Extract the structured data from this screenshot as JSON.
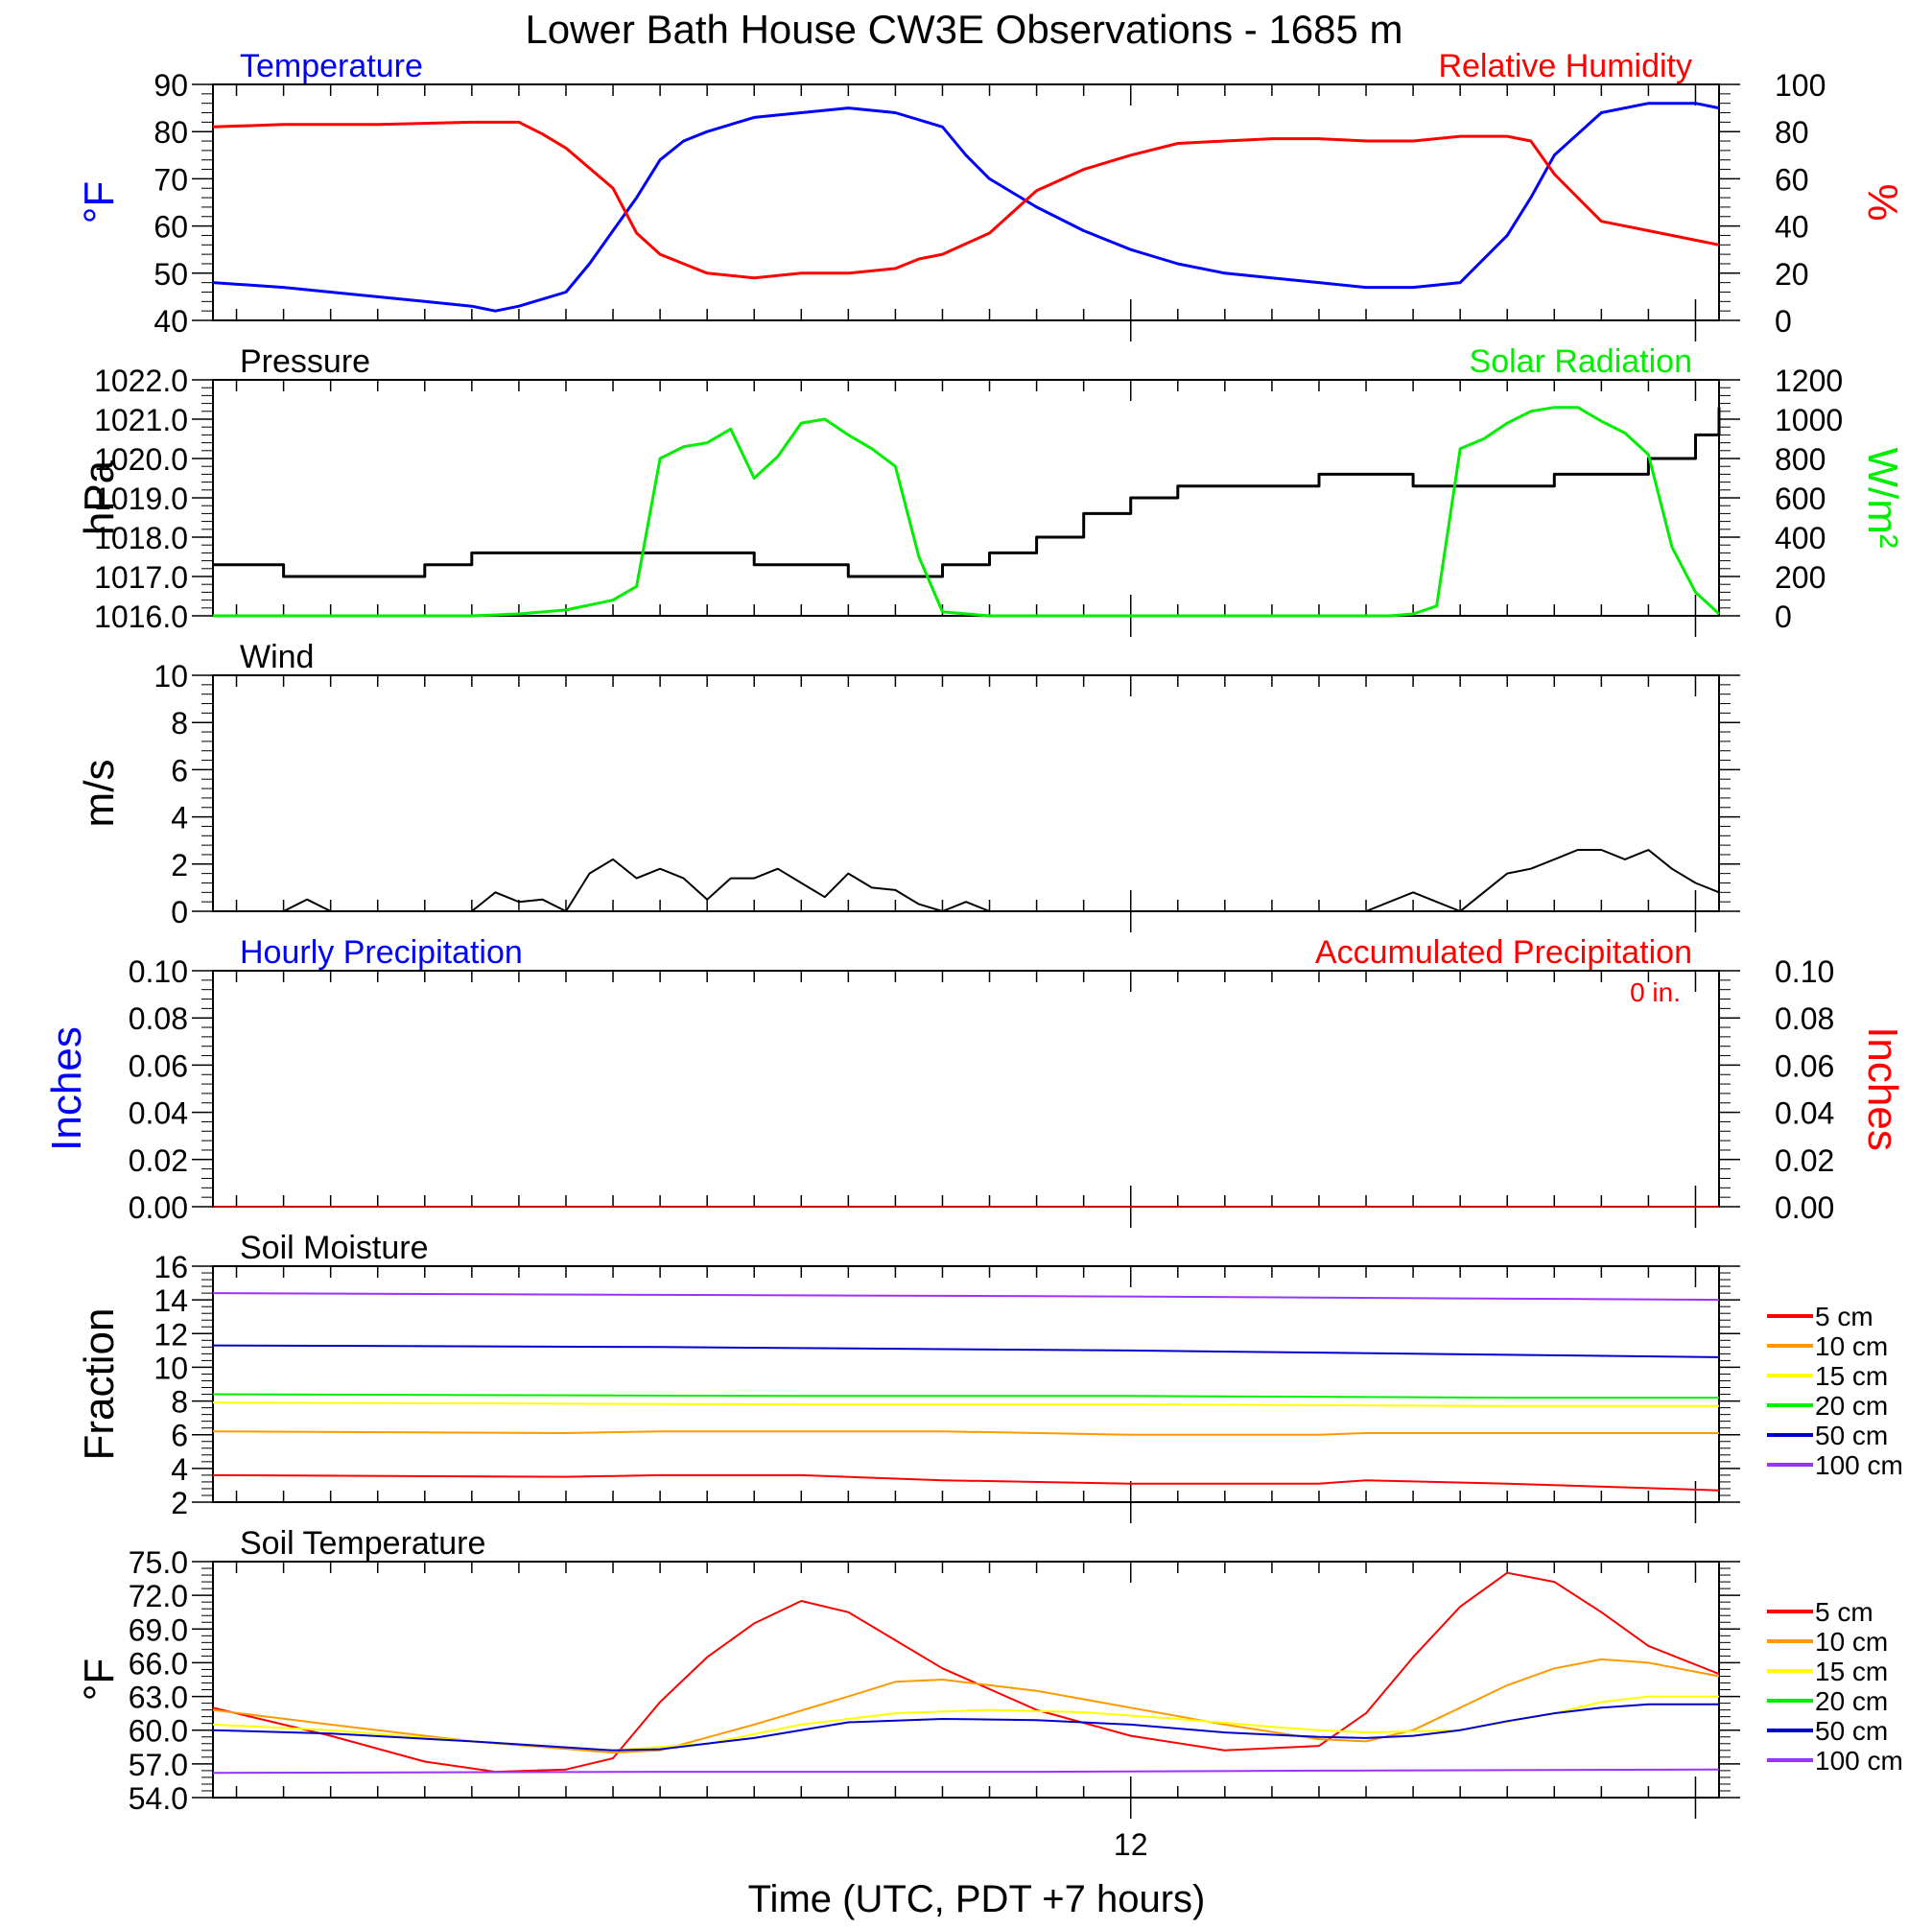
{
  "figure": {
    "title": "Lower Bath House CW3E Observations - 1685 m",
    "xlabel": "Time (UTC, PDT +7 hours)",
    "x_tick_labels": [
      {
        "hour": 12,
        "label": "12"
      }
    ]
  },
  "colors": {
    "blue": "#0000ff",
    "red": "#ff0000",
    "green": "#00ee00",
    "black": "#000000",
    "orange": "#ff9900",
    "yellow": "#ffff00",
    "navy": "#0000cc",
    "purple": "#9933ff"
  },
  "chart_data": [
    {
      "id": "temp_rh",
      "type": "line",
      "left_title": "Temperature",
      "right_title": "Relative Humidity",
      "left_ylabel": "°F",
      "right_ylabel": "%",
      "left_ylim": [
        40,
        90
      ],
      "right_ylim": [
        0,
        100
      ],
      "left_ticks": [
        "40",
        "50",
        "60",
        "70",
        "80",
        "90"
      ],
      "right_ticks": [
        "0",
        "20",
        "40",
        "60",
        "80",
        "100"
      ],
      "x_range_hours": [
        -7.5,
        24.5
      ],
      "series": [
        {
          "name": "Temperature",
          "axis": "left",
          "color": "#0000ff",
          "x": [
            -7.5,
            -6,
            -5,
            -3,
            -2,
            -1.5,
            -1,
            0,
            0.5,
            1,
            1.5,
            2,
            2.5,
            3,
            4,
            5,
            6,
            7,
            8,
            8.5,
            9,
            10,
            11,
            12,
            13,
            14,
            15,
            16,
            17,
            18,
            19,
            20,
            20.5,
            21,
            22,
            23,
            24,
            24.5
          ],
          "y": [
            48,
            47,
            46,
            44,
            43,
            42,
            43,
            46,
            52,
            59,
            66,
            74,
            78,
            80,
            83,
            84,
            85,
            84,
            81,
            75,
            70,
            64,
            59,
            55,
            52,
            50,
            49,
            48,
            47,
            47,
            48,
            58,
            66,
            75,
            84,
            86,
            86,
            85
          ]
        },
        {
          "name": "Relative Humidity",
          "axis": "right",
          "color": "#ff0000",
          "x": [
            -7.5,
            -6,
            -4,
            -2,
            -1,
            -0.5,
            0,
            1,
            1.5,
            2,
            2.5,
            3,
            4,
            5,
            6,
            7,
            7.5,
            8,
            9,
            10,
            11,
            12,
            13,
            14,
            15,
            16,
            17,
            18,
            19,
            20,
            20.5,
            21,
            22,
            23,
            24,
            24.5
          ],
          "y": [
            82,
            83,
            83,
            84,
            84,
            79,
            73,
            56,
            37,
            28,
            24,
            20,
            18,
            20,
            20,
            22,
            26,
            28,
            37,
            55,
            64,
            70,
            75,
            76,
            77,
            77,
            76,
            76,
            78,
            78,
            76,
            62,
            42,
            38,
            34,
            32
          ]
        }
      ]
    },
    {
      "id": "pressure_solar",
      "type": "line",
      "left_title": "Pressure",
      "right_title": "Solar Radiation",
      "left_ylabel": "hPa",
      "right_ylabel": "W/m²",
      "left_ylim": [
        1016.0,
        1022.0
      ],
      "right_ylim": [
        0,
        1200
      ],
      "left_ticks": [
        "1016.0",
        "1017.0",
        "1018.0",
        "1019.0",
        "1020.0",
        "1021.0",
        "1022.0"
      ],
      "right_ticks": [
        "0",
        "200",
        "400",
        "600",
        "800",
        "1000",
        "1200"
      ],
      "x_range_hours": [
        -7.5,
        24.5
      ],
      "series": [
        {
          "name": "Pressure",
          "axis": "left",
          "color": "#000000",
          "step": true,
          "x": [
            -7.5,
            -6,
            -4,
            -3,
            -2,
            -1,
            0,
            1,
            2,
            3,
            4,
            5,
            6,
            7,
            8,
            9,
            10,
            11,
            12,
            13,
            14,
            15,
            16,
            17,
            18,
            19,
            20,
            21,
            22,
            23,
            24,
            24.5
          ],
          "y": [
            1017.3,
            1017.0,
            1017.0,
            1017.3,
            1017.6,
            1017.6,
            1017.6,
            1017.6,
            1017.6,
            1017.6,
            1017.3,
            1017.3,
            1017.0,
            1017.0,
            1017.3,
            1017.6,
            1018.0,
            1018.6,
            1019.0,
            1019.3,
            1019.3,
            1019.3,
            1019.6,
            1019.6,
            1019.3,
            1019.3,
            1019.3,
            1019.6,
            1019.6,
            1020.0,
            1020.6,
            1021.3
          ]
        },
        {
          "name": "Solar Radiation",
          "axis": "right",
          "color": "#00ee00",
          "x": [
            -7.5,
            -2,
            -1,
            0,
            1,
            1.5,
            2,
            2.5,
            3,
            3.5,
            4,
            4.5,
            5,
            5.5,
            6,
            6.5,
            7,
            7.5,
            8,
            9,
            10,
            11,
            12,
            13,
            14,
            15,
            16,
            17,
            17.5,
            18,
            18.5,
            19,
            19.5,
            20,
            20.5,
            21,
            21.5,
            22,
            22.5,
            23,
            23.5,
            24,
            24.5
          ],
          "y": [
            0,
            0,
            10,
            30,
            80,
            150,
            800,
            860,
            880,
            950,
            700,
            810,
            980,
            1000,
            920,
            850,
            760,
            300,
            20,
            0,
            0,
            0,
            0,
            0,
            0,
            0,
            0,
            0,
            0,
            10,
            50,
            850,
            900,
            980,
            1040,
            1060,
            1060,
            990,
            930,
            820,
            350,
            120,
            10
          ]
        }
      ]
    },
    {
      "id": "wind",
      "type": "line",
      "left_title": "Wind",
      "left_ylabel": "m/s",
      "left_ylim": [
        0,
        10
      ],
      "left_ticks": [
        "0",
        "2",
        "4",
        "6",
        "8",
        "10"
      ],
      "x_range_hours": [
        -7.5,
        24.5
      ],
      "series": [
        {
          "name": "Wind",
          "axis": "left",
          "color": "#000000",
          "x": [
            -7.5,
            -6,
            -5.5,
            -5,
            -2,
            -1.5,
            -1,
            -0.5,
            0,
            0.5,
            1,
            1.5,
            2,
            2.5,
            3,
            3.5,
            4,
            4.5,
            5,
            5.5,
            6,
            6.5,
            7,
            7.5,
            8,
            8.5,
            9,
            9.5,
            10,
            16,
            17,
            18,
            18.5,
            19,
            19.5,
            20,
            20.5,
            21,
            21.5,
            22,
            22.5,
            23,
            23.5,
            24,
            24.5
          ],
          "y": [
            0,
            0,
            0.5,
            0,
            0,
            0.8,
            0.4,
            0.5,
            0,
            1.6,
            2.2,
            1.4,
            1.8,
            1.4,
            0.5,
            1.4,
            1.4,
            1.8,
            1.2,
            0.6,
            1.6,
            1.0,
            0.9,
            0.3,
            0,
            0.4,
            0,
            0,
            0,
            0,
            0,
            0.8,
            0.4,
            0,
            0.8,
            1.6,
            1.8,
            2.2,
            2.6,
            2.6,
            2.2,
            2.6,
            1.8,
            1.2,
            0.8
          ]
        }
      ]
    },
    {
      "id": "precip",
      "type": "line",
      "left_title": "Hourly Precipitation",
      "right_title": "Accumulated Precipitation",
      "left_ylabel": "Inches",
      "right_ylabel": "Inches",
      "left_ylim": [
        0,
        0.1
      ],
      "right_ylim": [
        0,
        0.1
      ],
      "left_ticks": [
        "0.00",
        "0.02",
        "0.04",
        "0.06",
        "0.08",
        "0.10"
      ],
      "right_ticks": [
        "0.00",
        "0.02",
        "0.04",
        "0.06",
        "0.08",
        "0.10"
      ],
      "annotation": "0 in.",
      "x_range_hours": [
        -7.5,
        24.5
      ],
      "series": [
        {
          "name": "Hourly Precipitation",
          "axis": "left",
          "color": "#0000ff",
          "x": [
            -7.5,
            24.5
          ],
          "y": [
            0,
            0
          ]
        },
        {
          "name": "Accumulated Precipitation",
          "axis": "right",
          "color": "#cc0000",
          "x": [
            -7.5,
            24.5
          ],
          "y": [
            0,
            0
          ]
        }
      ]
    },
    {
      "id": "soil_moisture",
      "type": "line",
      "left_title": "Soil Moisture",
      "left_ylabel": "Fraction",
      "left_ylim": [
        2,
        16
      ],
      "left_ticks": [
        "2",
        "4",
        "6",
        "8",
        "10",
        "12",
        "14",
        "16"
      ],
      "x_range_hours": [
        -7.5,
        24.5
      ],
      "legend_position": "right",
      "series": [
        {
          "name": "5 cm",
          "color": "#ff0000",
          "x": [
            -7.5,
            0,
            2,
            5,
            8,
            12,
            16,
            17,
            20,
            24.5
          ],
          "y": [
            3.6,
            3.5,
            3.6,
            3.6,
            3.3,
            3.1,
            3.1,
            3.3,
            3.1,
            2.7
          ]
        },
        {
          "name": "10 cm",
          "color": "#ff9900",
          "x": [
            -7.5,
            0,
            2,
            5,
            8,
            12,
            16,
            17,
            20,
            24.5
          ],
          "y": [
            6.2,
            6.1,
            6.2,
            6.2,
            6.2,
            6.0,
            6.0,
            6.1,
            6.1,
            6.1
          ]
        },
        {
          "name": "15 cm",
          "color": "#ffff00",
          "x": [
            -7.5,
            5,
            12,
            20,
            24.5
          ],
          "y": [
            7.9,
            7.8,
            7.8,
            7.7,
            7.7
          ]
        },
        {
          "name": "20 cm",
          "color": "#00ee00",
          "x": [
            -7.5,
            5,
            12,
            20,
            24.5
          ],
          "y": [
            8.4,
            8.3,
            8.3,
            8.2,
            8.2
          ]
        },
        {
          "name": "50 cm",
          "color": "#0000cc",
          "x": [
            -7.5,
            2,
            12,
            24.5
          ],
          "y": [
            11.3,
            11.2,
            11.0,
            10.6
          ]
        },
        {
          "name": "100 cm",
          "color": "#9933ff",
          "x": [
            -7.5,
            2,
            12,
            24.5
          ],
          "y": [
            14.4,
            14.3,
            14.2,
            14.0
          ]
        }
      ]
    },
    {
      "id": "soil_temp",
      "type": "line",
      "left_title": "Soil Temperature",
      "left_ylabel": "°F",
      "left_ylim": [
        54.0,
        75.0
      ],
      "left_ticks": [
        "54.0",
        "57.0",
        "60.0",
        "63.0",
        "66.0",
        "69.0",
        "72.0",
        "75.0"
      ],
      "x_range_hours": [
        -7.5,
        24.5
      ],
      "legend_position": "right",
      "series": [
        {
          "name": "5 cm",
          "color": "#ff0000",
          "x": [
            -7.5,
            -5,
            -3,
            -1.5,
            0,
            1,
            2,
            3,
            4,
            5,
            6,
            7,
            8,
            10,
            12,
            14,
            16,
            17,
            18,
            19,
            20,
            21,
            22,
            23,
            24.5
          ],
          "y": [
            62.0,
            59.5,
            57.2,
            56.3,
            56.5,
            57.5,
            62.5,
            66.5,
            69.5,
            71.5,
            70.5,
            68.0,
            65.5,
            61.8,
            59.5,
            58.2,
            58.6,
            61.5,
            66.5,
            71.0,
            74.0,
            73.2,
            70.5,
            67.5,
            65.0
          ]
        },
        {
          "name": "10 cm",
          "color": "#ff9900",
          "x": [
            -7.5,
            -5,
            -2,
            1,
            2,
            4,
            6,
            7,
            8,
            10,
            12,
            14,
            16,
            17,
            18,
            19,
            20,
            21,
            22,
            23,
            24.5
          ],
          "y": [
            61.8,
            60.5,
            59.0,
            58.0,
            58.2,
            60.5,
            63.0,
            64.3,
            64.5,
            63.5,
            62.0,
            60.5,
            59.2,
            59.0,
            60.0,
            62.0,
            64.0,
            65.5,
            66.3,
            66.0,
            64.8
          ]
        },
        {
          "name": "15 cm",
          "color": "#ffff00",
          "x": [
            -7.5,
            -5,
            -2,
            1,
            3,
            5,
            7,
            9,
            11,
            13,
            15,
            16,
            17,
            19,
            21,
            22,
            23,
            24.5
          ],
          "y": [
            60.5,
            60.0,
            59.0,
            58.2,
            58.8,
            60.5,
            61.5,
            61.8,
            61.6,
            61.0,
            60.3,
            60.0,
            59.8,
            60.0,
            61.5,
            62.5,
            63.0,
            63.0
          ]
        },
        {
          "name": "20 cm",
          "color": "#00ee00",
          "x": [
            -7.5,
            24.5
          ],
          "y": [
            null,
            null
          ]
        },
        {
          "name": "50 cm",
          "color": "#0000cc",
          "x": [
            -7.5,
            -5,
            -2,
            1,
            2,
            4,
            6,
            8,
            10,
            12,
            14,
            16,
            17,
            18,
            19,
            20,
            21,
            22,
            23,
            24.5
          ],
          "y": [
            60.0,
            59.7,
            59.0,
            58.2,
            58.3,
            59.3,
            60.7,
            61.0,
            60.9,
            60.5,
            59.8,
            59.4,
            59.3,
            59.5,
            60.0,
            60.8,
            61.5,
            62.0,
            62.3,
            62.3
          ]
        },
        {
          "name": "100 cm",
          "color": "#9933ff",
          "x": [
            -7.5,
            2,
            10,
            16,
            24.5
          ],
          "y": [
            56.2,
            56.3,
            56.3,
            56.4,
            56.5
          ]
        }
      ]
    }
  ]
}
